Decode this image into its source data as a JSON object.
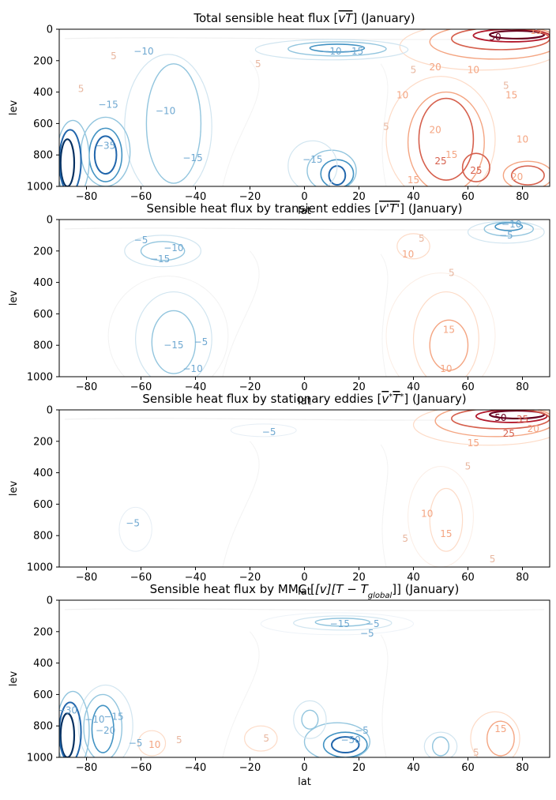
{
  "chart_data": [
    {
      "type": "contour",
      "title": "Total sensible heat flux [$\\overline{vT}$] (January)",
      "title_parts": [
        {
          "t": "Total sensible heat flux ["
        },
        {
          "t": "vT",
          "style": "italic",
          "over": true
        },
        {
          "t": "] (January)"
        }
      ],
      "xlabel": "lat",
      "ylabel": "lev",
      "xlim": [
        -90,
        90
      ],
      "ylim": [
        1000,
        0
      ],
      "xticks": [
        -80,
        -60,
        -40,
        -20,
        0,
        20,
        40,
        60,
        80
      ],
      "yticks": [
        0,
        200,
        400,
        600,
        800,
        1000
      ],
      "colormap": "RdBu_r",
      "contour_labels": [
        {
          "text": "50",
          "lat": 70,
          "lev": 50
        },
        {
          "text": "15",
          "lat": 85,
          "lev": 10
        },
        {
          "text": "20",
          "lat": 48,
          "lev": 240
        },
        {
          "text": "10",
          "lat": 62,
          "lev": 260
        },
        {
          "text": "5",
          "lat": 40,
          "lev": 260
        },
        {
          "text": "10",
          "lat": 36,
          "lev": 420
        },
        {
          "text": "20",
          "lat": 48,
          "lev": 640
        },
        {
          "text": "15",
          "lat": 54,
          "lev": 800
        },
        {
          "text": "25",
          "lat": 50,
          "lev": 840
        },
        {
          "text": "25",
          "lat": 63,
          "lev": 900
        },
        {
          "text": "15",
          "lat": 40,
          "lev": 960
        },
        {
          "text": "20",
          "lat": 78,
          "lev": 940
        },
        {
          "text": "10",
          "lat": -59,
          "lev": 140
        },
        {
          "text": "10",
          "lat": 10,
          "lev": 140
        },
        {
          "text": "15",
          "lat": 18,
          "lev": 140
        },
        {
          "text": "5",
          "lat": -70,
          "lev": 170
        },
        {
          "text": "15",
          "lat": -72,
          "lev": 480
        },
        {
          "text": "10",
          "lat": -51,
          "lev": 520
        },
        {
          "text": "15",
          "lat": -41,
          "lev": 820
        },
        {
          "text": "35",
          "lat": -73,
          "lev": 740
        },
        {
          "text": "15",
          "lat": 3,
          "lev": 830
        },
        {
          "text": "5",
          "lat": 74,
          "lev": 360
        },
        {
          "text": "15",
          "lat": 76,
          "lev": 420
        },
        {
          "text": "5",
          "lat": -17,
          "lev": 220
        },
        {
          "text": "5",
          "lat": -82,
          "lev": 380
        },
        {
          "text": "5",
          "lat": 30,
          "lev": 620
        },
        {
          "text": "10",
          "lat": 80,
          "lev": 700
        }
      ]
    },
    {
      "type": "contour",
      "title": "Sensible heat flux by transient eddies [$\\overline{v'T'}$] (January)",
      "title_parts": [
        {
          "t": "Sensible heat flux by transient eddies ["
        },
        {
          "t": "v'T'",
          "style": "italic",
          "over": true
        },
        {
          "t": "] (January)"
        }
      ],
      "xlabel": "lat",
      "ylabel": "lev",
      "xlim": [
        -90,
        90
      ],
      "ylim": [
        1000,
        0
      ],
      "xticks": [
        -80,
        -60,
        -40,
        -20,
        0,
        20,
        40,
        60,
        80
      ],
      "yticks": [
        0,
        200,
        400,
        600,
        800,
        1000
      ],
      "colormap": "RdBu_r",
      "contour_labels": [
        {
          "text": "5",
          "lat": -60,
          "lev": 130
        },
        {
          "text": "10",
          "lat": -48,
          "lev": 180
        },
        {
          "text": "15",
          "lat": -53,
          "lev": 250
        },
        {
          "text": "15",
          "lat": -48,
          "lev": 800
        },
        {
          "text": "10",
          "lat": -41,
          "lev": 950
        },
        {
          "text": "5",
          "lat": -38,
          "lev": 780
        },
        {
          "text": "5",
          "lat": 74,
          "lev": 100
        },
        {
          "text": "10",
          "lat": 76,
          "lev": 30
        },
        {
          "text": "10",
          "lat": 38,
          "lev": 220
        },
        {
          "text": "5",
          "lat": 43,
          "lev": 120
        },
        {
          "text": "5",
          "lat": 54,
          "lev": 340
        },
        {
          "text": "15",
          "lat": 53,
          "lev": 700
        },
        {
          "text": "10",
          "lat": 52,
          "lev": 950
        }
      ]
    },
    {
      "type": "contour",
      "title": "Sensible heat flux by stationary eddies [$\\overline{v}^*\\overline{T}^*$] (January)",
      "title_parts": [
        {
          "t": "Sensible heat flux by stationary eddies ["
        },
        {
          "t": "v",
          "style": "italic",
          "over": true
        },
        {
          "t": "*",
          "sup": true
        },
        {
          "t": "T",
          "style": "italic",
          "over": true
        },
        {
          "t": "*",
          "sup": true
        },
        {
          "t": "] (January)"
        }
      ],
      "xlabel": "lat",
      "ylabel": "lev",
      "xlim": [
        -90,
        90
      ],
      "ylim": [
        1000,
        0
      ],
      "xticks": [
        -80,
        -60,
        -40,
        -20,
        0,
        20,
        40,
        60,
        80
      ],
      "yticks": [
        0,
        200,
        400,
        600,
        800,
        1000
      ],
      "colormap": "RdBu_r",
      "contour_labels": [
        {
          "text": "50",
          "lat": 72,
          "lev": 50
        },
        {
          "text": "35",
          "lat": 80,
          "lev": 60
        },
        {
          "text": "25",
          "lat": 75,
          "lev": 150
        },
        {
          "text": "20",
          "lat": 84,
          "lev": 120
        },
        {
          "text": "15",
          "lat": 62,
          "lev": 210
        },
        {
          "text": "5",
          "lat": -13,
          "lev": 140
        },
        {
          "text": "5",
          "lat": 60,
          "lev": 360
        },
        {
          "text": "5",
          "lat": -63,
          "lev": 720
        },
        {
          "text": "10",
          "lat": 45,
          "lev": 660
        },
        {
          "text": "15",
          "lat": 52,
          "lev": 790
        },
        {
          "text": "5",
          "lat": 37,
          "lev": 820
        },
        {
          "text": "5",
          "lat": 69,
          "lev": 950
        }
      ]
    },
    {
      "type": "contour",
      "title": "Sensible heat flux by MMC [$[\\overline{v}][\\overline{T}-\\overline{T}_{global}]$] (January)",
      "title_parts": [
        {
          "t": "Sensible heat flux by MMC ["
        },
        {
          "t": "[v][T − T",
          "style": "italic"
        },
        {
          "t": "global",
          "sub": true,
          "style": "italic"
        },
        {
          "t": "]] (January)"
        }
      ],
      "xlabel": "lat",
      "ylabel": "lev",
      "xlim": [
        -90,
        90
      ],
      "ylim": [
        1000,
        0
      ],
      "xticks": [
        -80,
        -60,
        -40,
        -20,
        0,
        20,
        40,
        60,
        80
      ],
      "yticks": [
        0,
        200,
        400,
        600,
        800,
        1000
      ],
      "colormap": "RdBu_r",
      "contour_labels": [
        {
          "text": "15",
          "lat": 13,
          "lev": 150
        },
        {
          "text": "5",
          "lat": 23,
          "lev": 210
        },
        {
          "text": "5",
          "lat": 25,
          "lev": 150
        },
        {
          "text": "10",
          "lat": -77,
          "lev": 760
        },
        {
          "text": "20",
          "lat": -73,
          "lev": 830
        },
        {
          "text": "15",
          "lat": -70,
          "lev": 740
        },
        {
          "text": "5",
          "lat": -62,
          "lev": 910
        },
        {
          "text": "10",
          "lat": -55,
          "lev": 920
        },
        {
          "text": "5",
          "lat": -46,
          "lev": 890
        },
        {
          "text": "5",
          "lat": -14,
          "lev": 880
        },
        {
          "text": "50",
          "lat": 17,
          "lev": 890
        },
        {
          "text": "5",
          "lat": 21,
          "lev": 830
        },
        {
          "text": "15",
          "lat": 72,
          "lev": 820
        },
        {
          "text": "5",
          "lat": 63,
          "lev": 970
        },
        {
          "text": "30",
          "lat": -87,
          "lev": 700
        }
      ]
    }
  ]
}
